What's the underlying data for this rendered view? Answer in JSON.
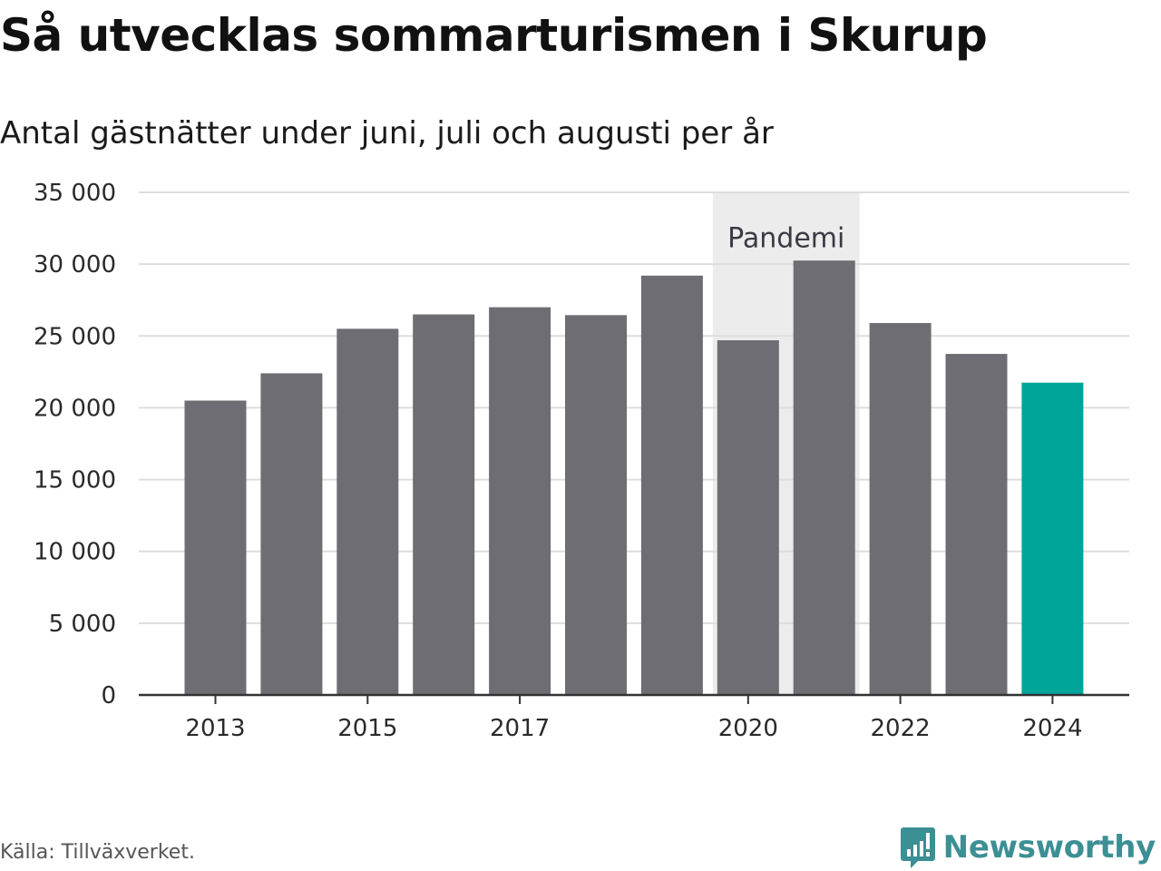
{
  "header": {
    "title": "Så utvecklas sommarturismen i Skurup",
    "subtitle": "Antal gästnätter under juni, juli och augusti per år"
  },
  "footer": {
    "source": "Källa: Tillväxverket.",
    "brand": "Newsworthy",
    "brand_icon": "bar-chart-speech-bubble-icon",
    "brand_color": "#3c8f94"
  },
  "chart_data": {
    "type": "bar",
    "categories": [
      "2013",
      "2014",
      "2015",
      "2016",
      "2017",
      "2018",
      "2019",
      "2020",
      "2021",
      "2022",
      "2023",
      "2024"
    ],
    "values": [
      20500,
      22400,
      25500,
      26500,
      27000,
      26450,
      29200,
      24700,
      30250,
      25900,
      23750,
      21750
    ],
    "highlight_category": "2024",
    "bar_color": "#6e6d73",
    "highlight_color": "#00a59a",
    "ylim": [
      0,
      35000
    ],
    "yticks": [
      0,
      5000,
      10000,
      15000,
      20000,
      25000,
      30000,
      35000
    ],
    "ytick_labels": [
      "0",
      "5 000",
      "10 000",
      "15 000",
      "20 000",
      "25 000",
      "30 000",
      "35 000"
    ],
    "xtick_labels": [
      "2013",
      "2015",
      "2017",
      "2020",
      "2022",
      "2024"
    ],
    "xlabel": "",
    "ylabel": "",
    "grid": true,
    "legend": "none",
    "annotations": [
      {
        "label": "Pandemi",
        "from": "2020",
        "to": "2021",
        "shade_color": "#ececec"
      }
    ]
  }
}
